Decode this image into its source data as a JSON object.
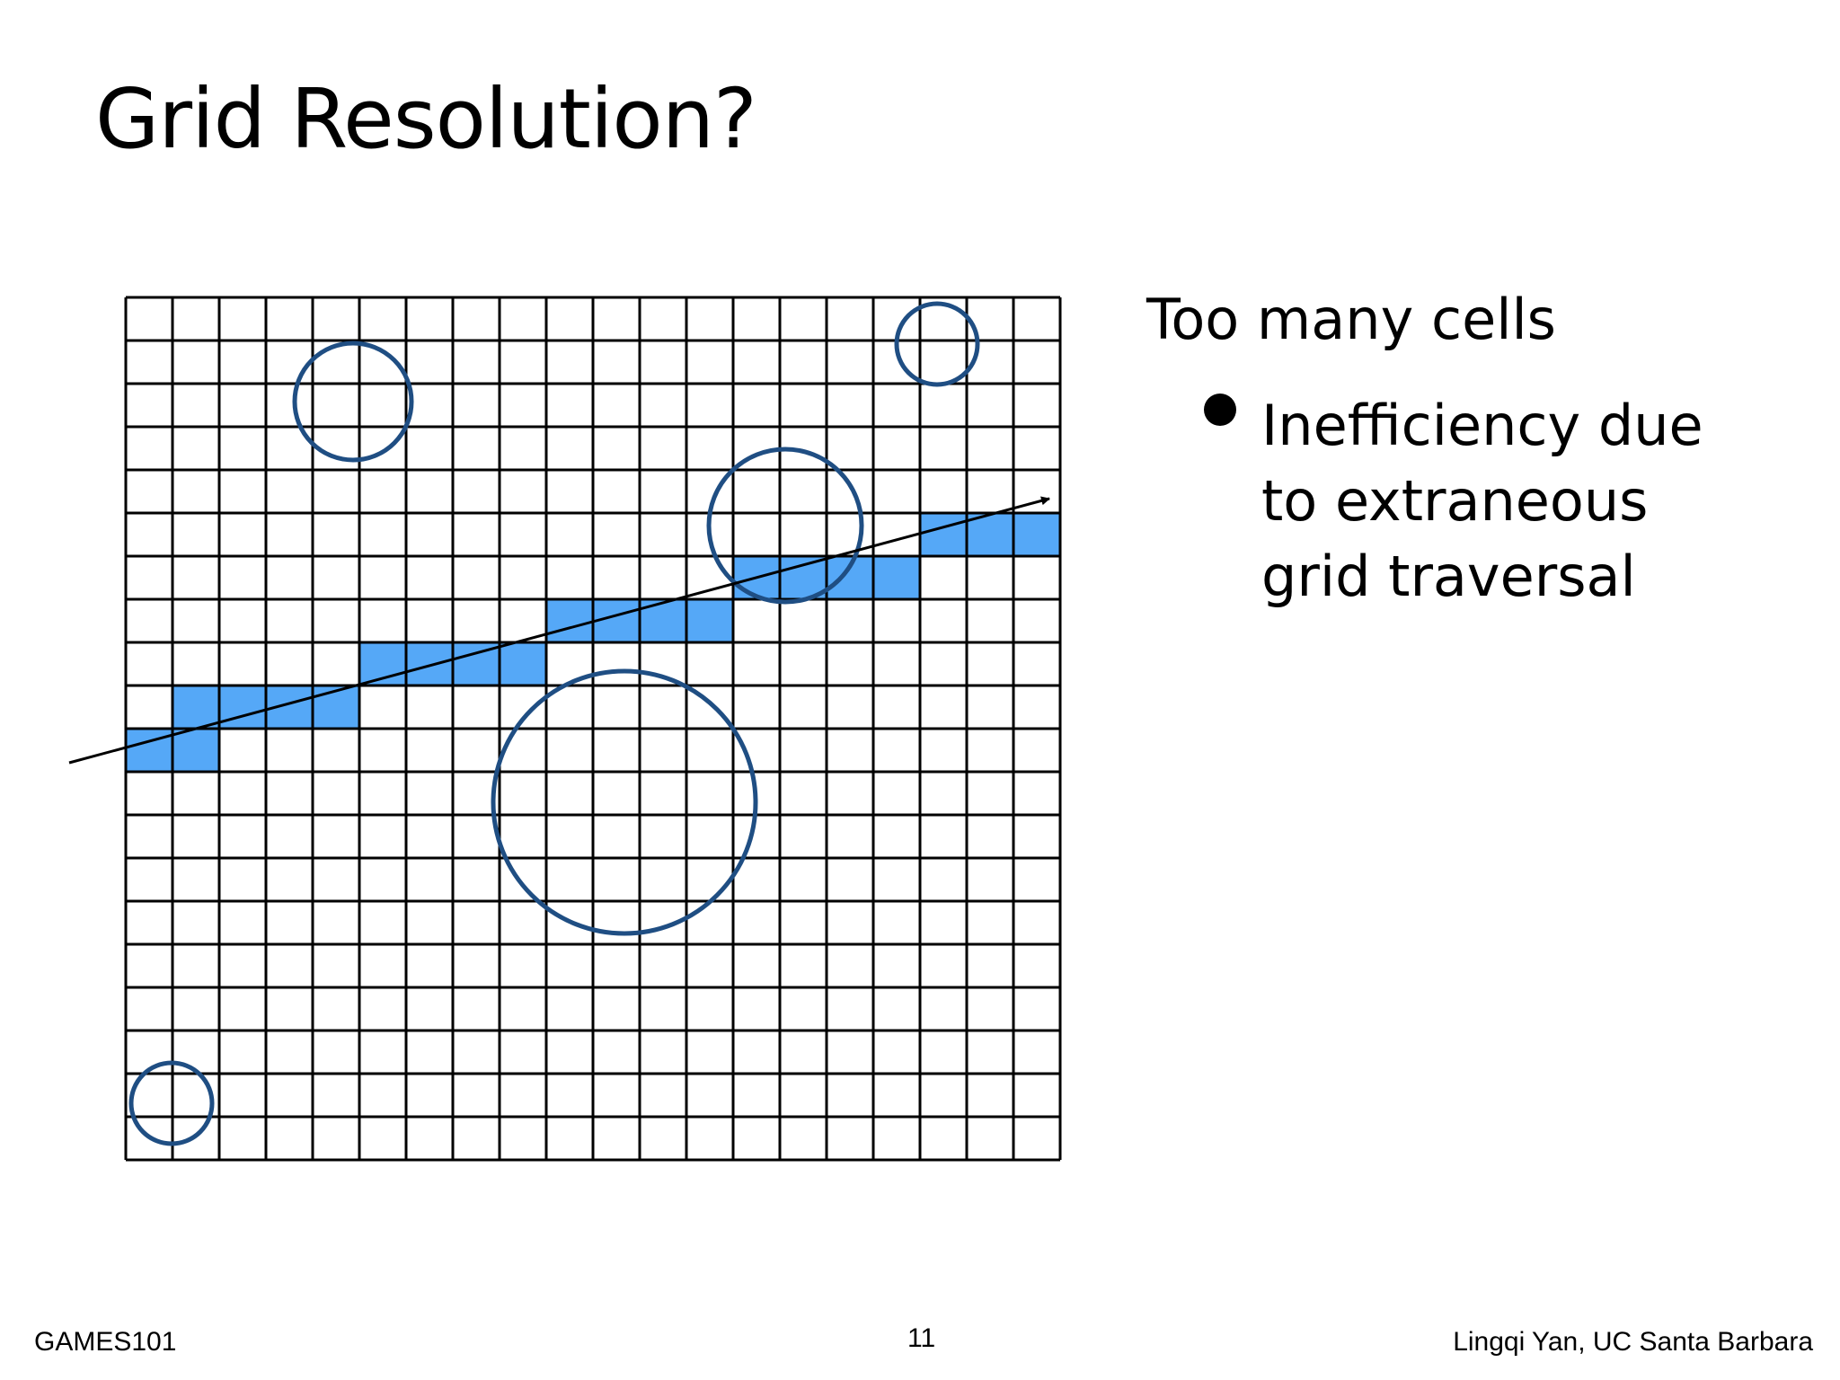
{
  "slide": {
    "title": "Grid Resolution?",
    "heading": "Too many cells",
    "bullet_lines": [
      "Inefficiency due",
      "to extraneous",
      "grid traversal"
    ]
  },
  "footer": {
    "left": "GAMES101",
    "page_number": "11",
    "right": "Lingqi Yan, UC Santa Barbara"
  },
  "colors": {
    "highlight_cell": "#55a8f7",
    "circle_stroke": "#1f4e83",
    "grid_line": "#000000"
  }
}
